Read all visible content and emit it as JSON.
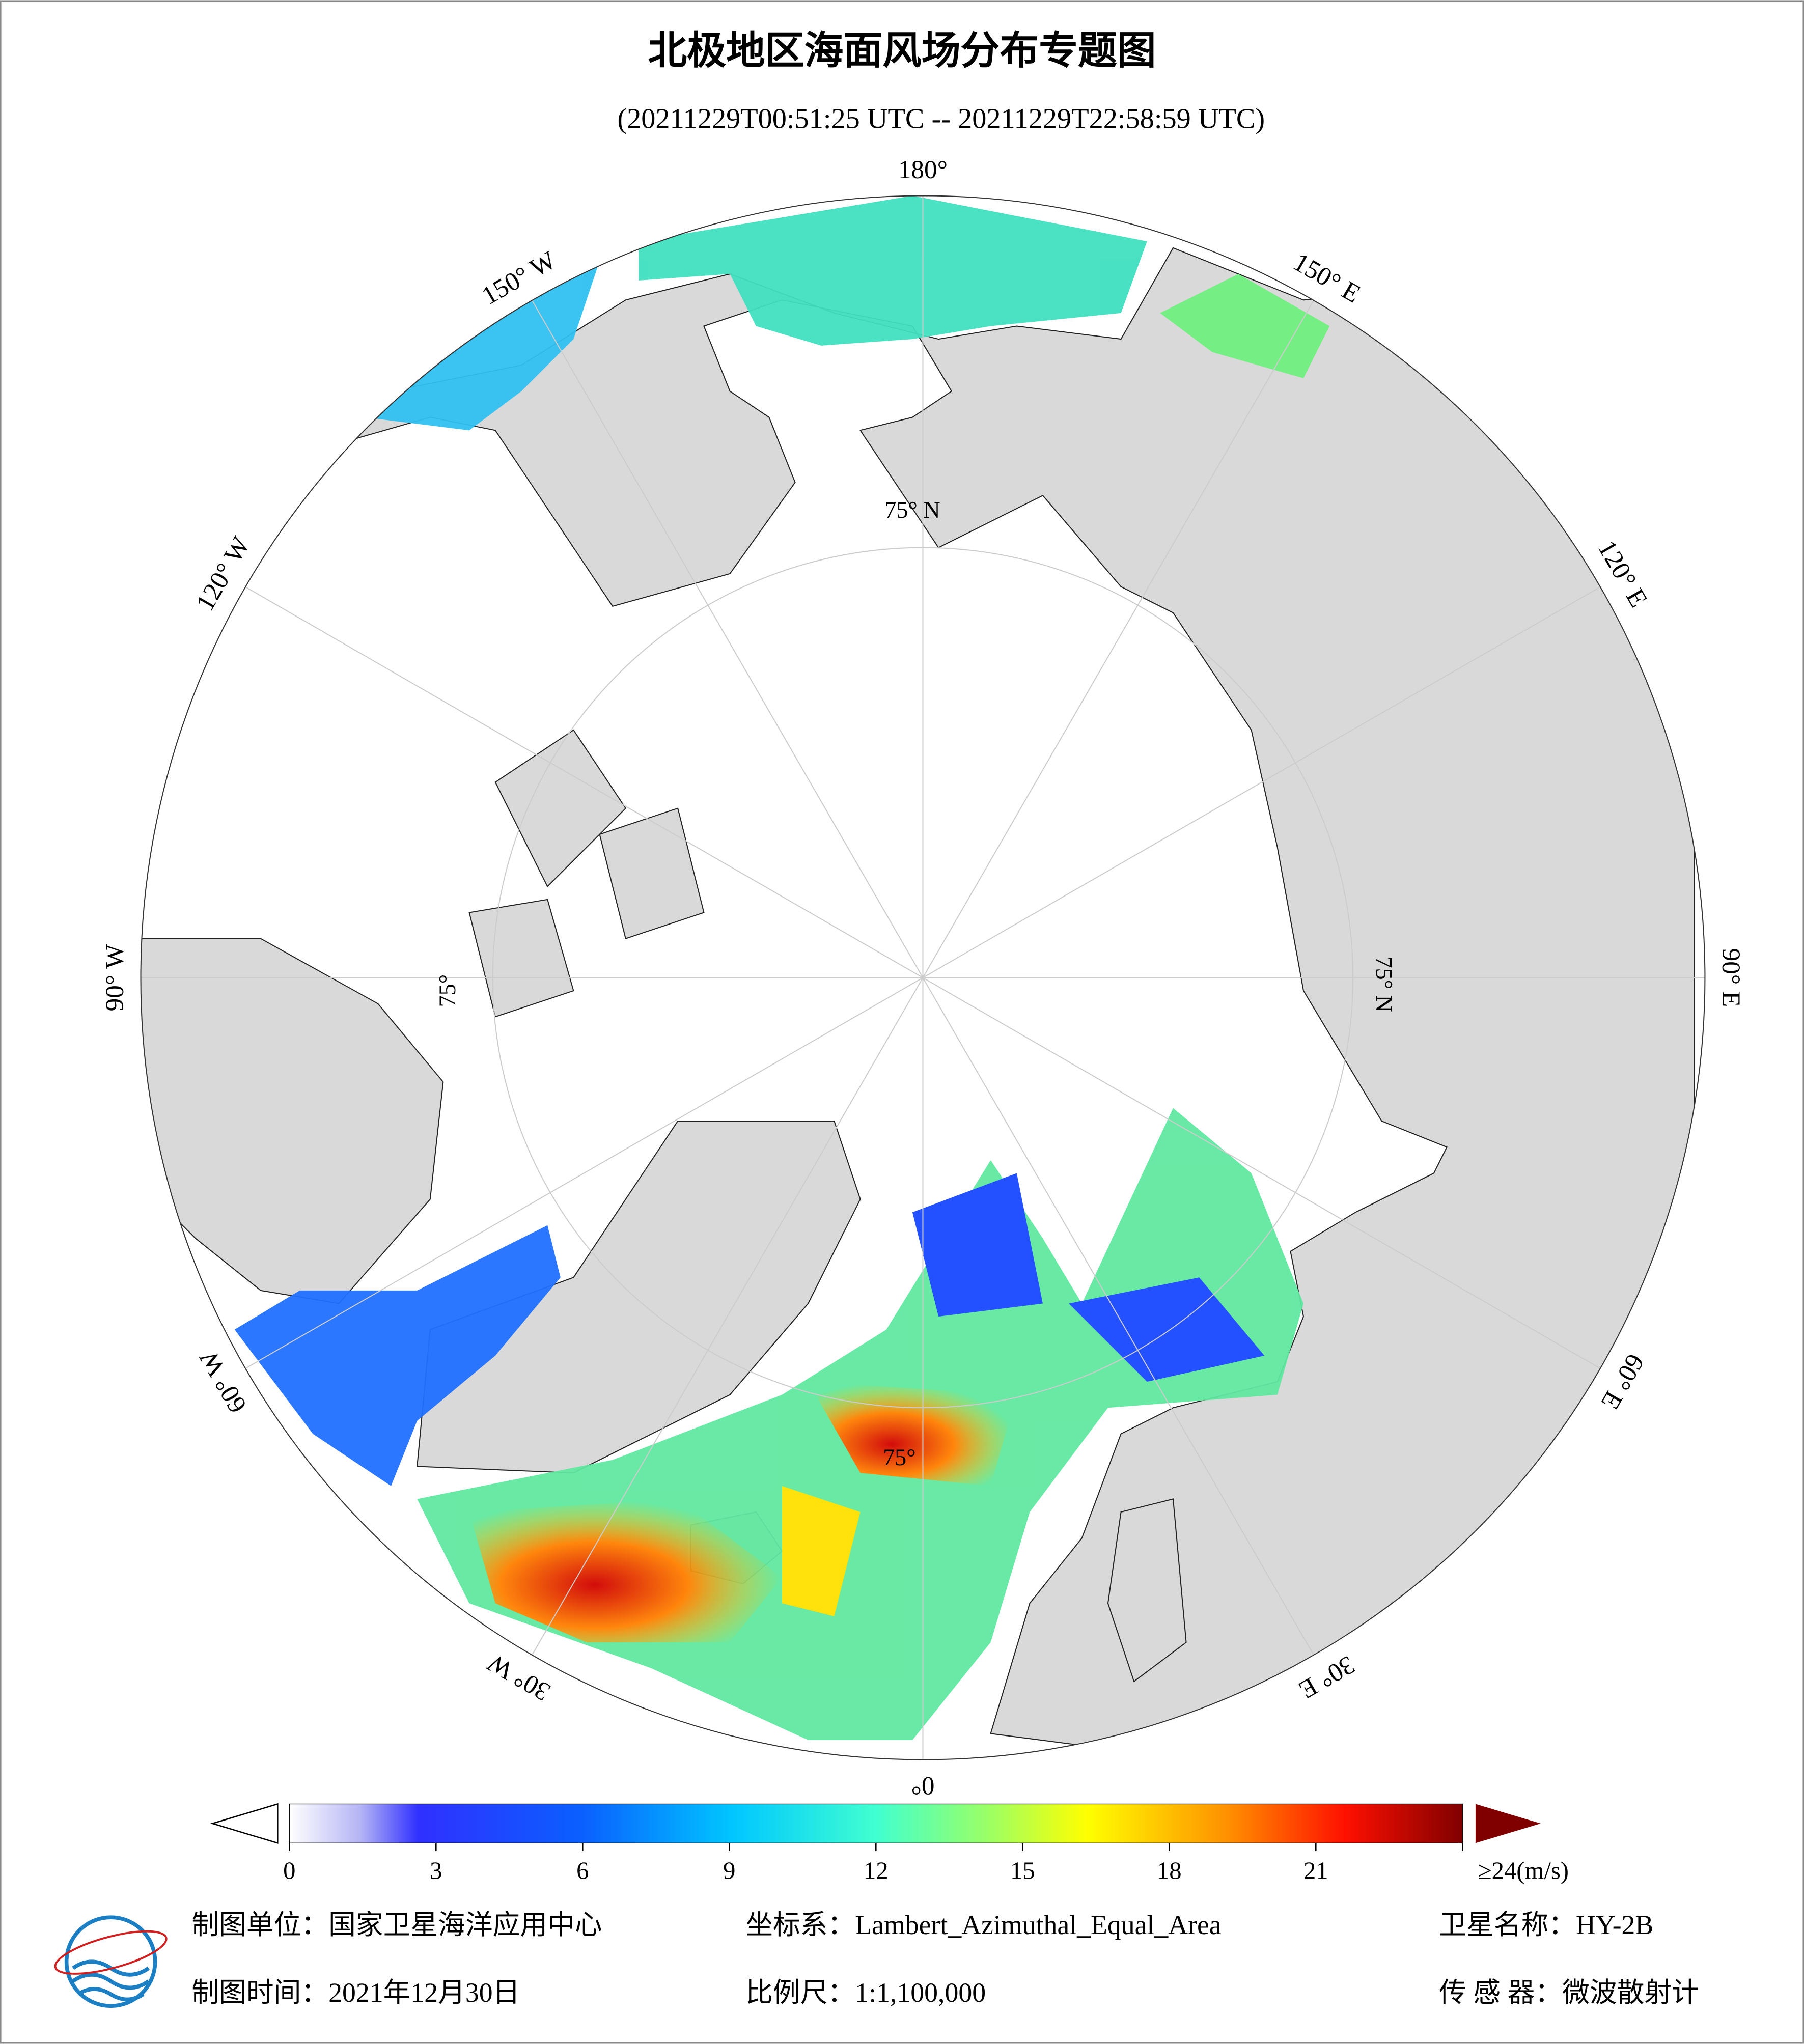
{
  "header": {
    "title": "北极地区海面风场分布专题图",
    "subtitle": "(20211229T00:51:25 UTC -- 20211229T22:58:59 UTC)"
  },
  "map": {
    "longitude_labels": [
      "180°",
      "150° E",
      "120° E",
      "90° E",
      "60° E",
      "30° E",
      "0°",
      "30° W",
      "60° W",
      "90° W",
      "120° W",
      "150° W"
    ],
    "latitude_labels": [
      "75° N",
      "75° N",
      "75°",
      "75°"
    ]
  },
  "colorbar": {
    "range": [
      0,
      24
    ],
    "ticks": [
      0,
      3,
      6,
      9,
      12,
      15,
      18,
      21,
      {
        "value": 24,
        "label": "≥24(m/s)"
      }
    ]
  },
  "footer": {
    "producer": "制图单位：国家卫星海洋应用中心",
    "projection": "坐标系：Lambert_Azimuthal_Equal_Area",
    "satellite": "卫星名称：HY-2B",
    "date": "制图时间：2021年12月30日",
    "scale": "比例尺：1:1,100,000",
    "sensor": "传 感 器：微波散射计"
  }
}
